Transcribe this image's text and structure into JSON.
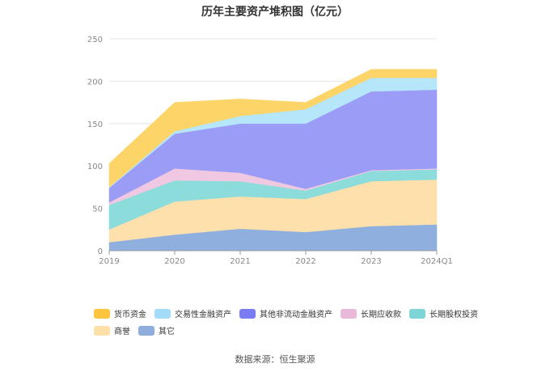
{
  "chart_data": {
    "type": "area",
    "stacked": true,
    "title": "历年主要资产堆积图（亿元）",
    "categories": [
      "2019",
      "2020",
      "2021",
      "2022",
      "2023",
      "2024Q1"
    ],
    "ylim": [
      0,
      250
    ],
    "yticks": [
      "0",
      "50",
      "100",
      "150",
      "200",
      "250"
    ],
    "grid": true,
    "legend_position": "bottom",
    "series": [
      {
        "name": "其它",
        "color": "#8fb0de",
        "values": [
          10,
          19,
          26,
          22,
          29,
          31
        ]
      },
      {
        "name": "商誉",
        "color": "#fde0ac",
        "values": [
          15,
          39,
          38,
          39,
          53,
          53
        ]
      },
      {
        "name": "长期股权投资",
        "color": "#8ddcdc",
        "values": [
          29,
          25,
          18,
          10,
          12,
          12
        ]
      },
      {
        "name": "长期应收款",
        "color": "#f0c8e2",
        "values": [
          3,
          14,
          10,
          2,
          1,
          1
        ]
      },
      {
        "name": "其他非流动金融资产",
        "color": "#9a9cf5",
        "values": [
          17,
          41,
          58,
          77,
          93,
          93
        ]
      },
      {
        "name": "交易性金融资产",
        "color": "#b5e6fa",
        "values": [
          1,
          3,
          9,
          17,
          16,
          14
        ]
      },
      {
        "name": "货币资金",
        "color": "#fdd468",
        "values": [
          28,
          34,
          20,
          8,
          10,
          10
        ]
      }
    ]
  },
  "legend": {
    "rows": [
      [
        {
          "label": "货币资金",
          "color": "#fdc440"
        },
        {
          "label": "交易性金融资产",
          "color": "#a3dcf8"
        },
        {
          "label": "其他非流动金融资产",
          "color": "#7b7cf0"
        },
        {
          "label": "长期应收款",
          "color": "#eab8d8"
        },
        {
          "label": "长期股权投资",
          "color": "#7dd5d5"
        }
      ],
      [
        {
          "label": "商誉",
          "color": "#fddfa8"
        },
        {
          "label": "其它",
          "color": "#8eaddd"
        }
      ]
    ]
  },
  "source": "数据来源：恒生聚源"
}
